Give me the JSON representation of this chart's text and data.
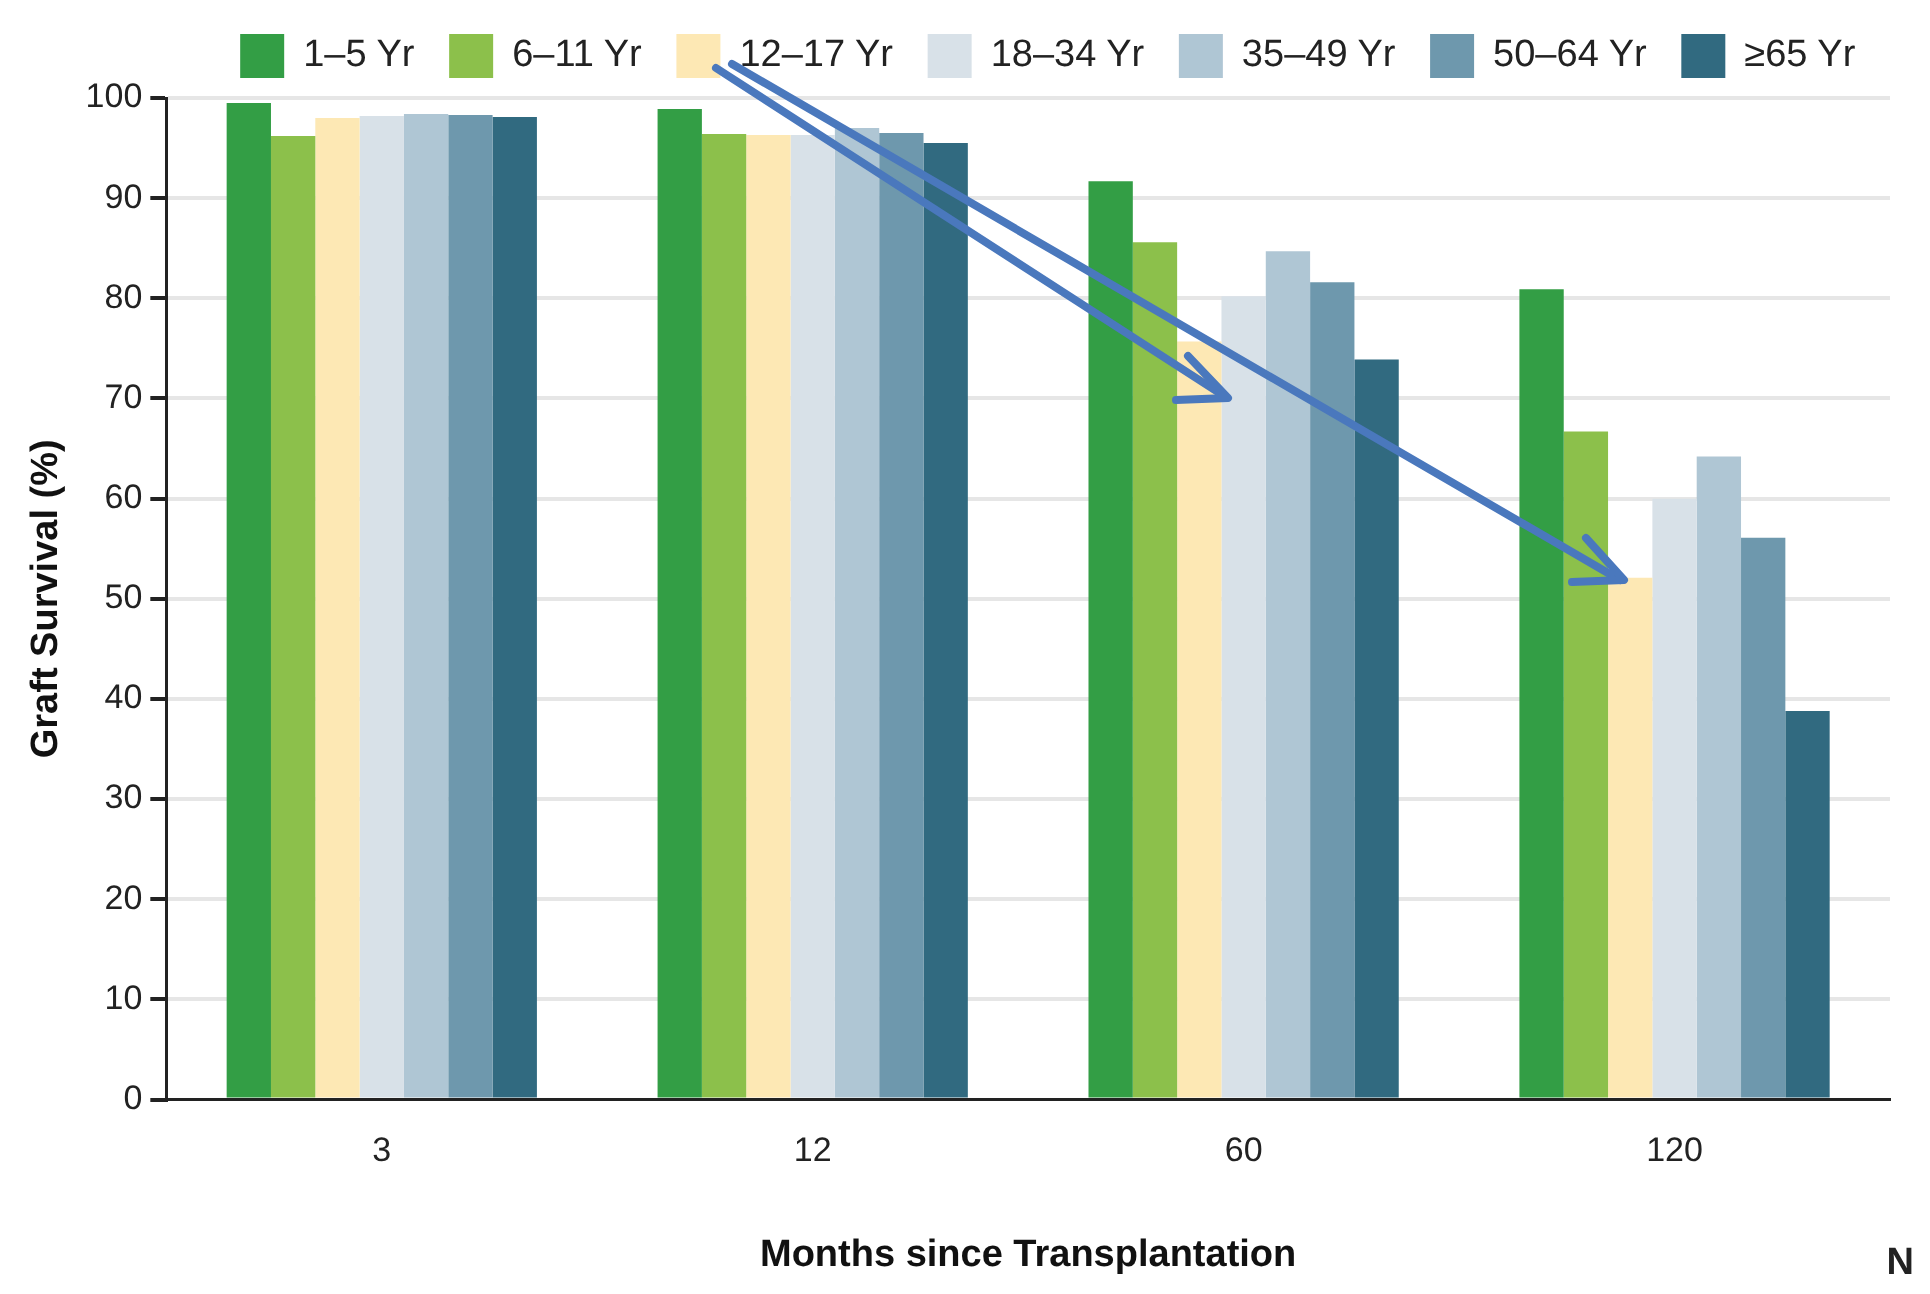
{
  "chart_data": {
    "type": "bar",
    "xlabel": "Months since Transplantation",
    "ylabel": "Graft Survival (%)",
    "categories": [
      "3",
      "12",
      "60",
      "120"
    ],
    "series": [
      {
        "name": "1–5 Yr",
        "color": "#339e45",
        "values": [
          99.5,
          98.9,
          91.7,
          80.9
        ]
      },
      {
        "name": "6–11 Yr",
        "color": "#8cc04b",
        "values": [
          96.2,
          96.4,
          85.6,
          66.7
        ]
      },
      {
        "name": "12–17 Yr",
        "color": "#fde8b4",
        "values": [
          98.0,
          96.3,
          75.7,
          52.1
        ]
      },
      {
        "name": "18–34 Yr",
        "color": "#d8e1e8",
        "values": [
          98.2,
          96.3,
          80.2,
          60.0
        ]
      },
      {
        "name": "35–49 Yr",
        "color": "#afc6d4",
        "values": [
          98.4,
          97.0,
          84.7,
          64.2
        ]
      },
      {
        "name": "50–64 Yr",
        "color": "#6e98ad",
        "values": [
          98.3,
          96.5,
          81.6,
          56.1
        ]
      },
      {
        "name": "≥65 Yr",
        "color": "#316a80",
        "values": [
          98.1,
          95.5,
          73.9,
          38.8
        ]
      }
    ],
    "ylim": [
      0,
      100
    ],
    "yticks": [
      0,
      10,
      20,
      30,
      40,
      50,
      60,
      70,
      80,
      90,
      100
    ],
    "grid": "y",
    "legend": "top",
    "annotations": [
      "N"
    ]
  }
}
